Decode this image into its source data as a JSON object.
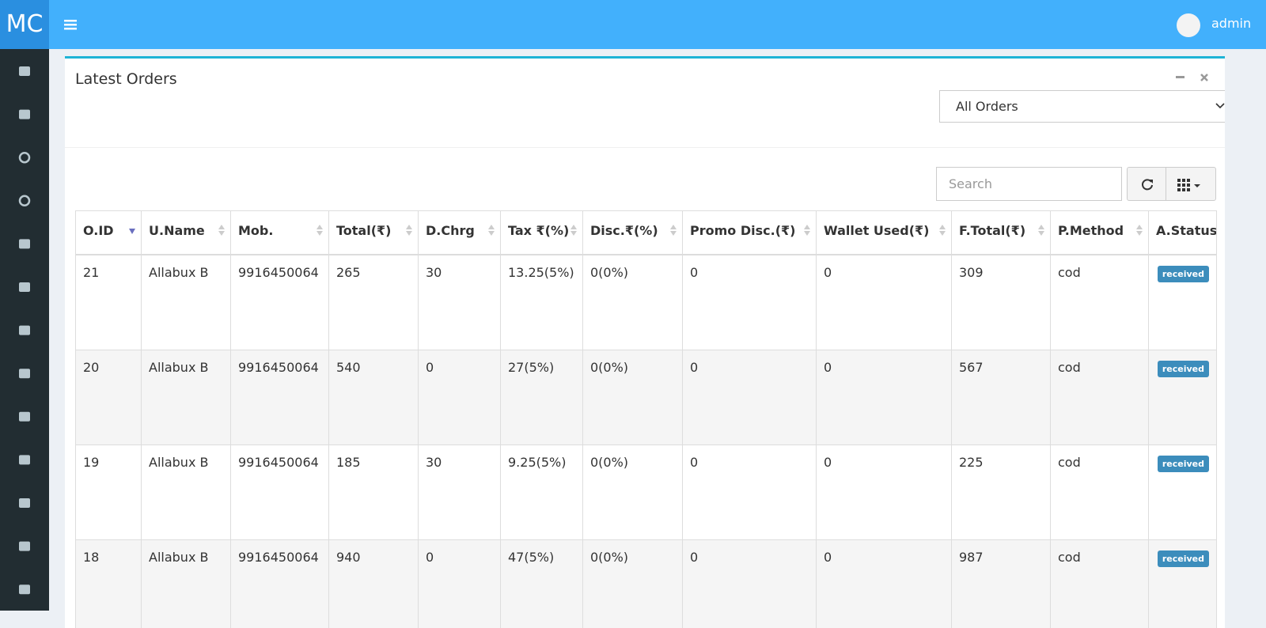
{
  "header": {
    "logo": "MC",
    "user": "admin"
  },
  "panel": {
    "title": "Latest Orders",
    "filter": "All Orders",
    "search": "Search"
  },
  "table": {
    "columns": [
      "O.ID",
      "U.Name",
      "Mob.",
      "Total(₹)",
      "D.Chrg",
      "Tax ₹(%)",
      "Disc.₹(%)",
      "Promo Disc.(₹)",
      "Wallet Used(₹)",
      "F.Total(₹)",
      "P.Method",
      "A.Status"
    ],
    "rows": [
      [
        "21",
        "Allabux B",
        "9916450064",
        "265",
        "30",
        "13.25(5%)",
        "0(0%)",
        "0",
        "0",
        "309",
        "cod",
        "received"
      ],
      [
        "20",
        "Allabux B",
        "9916450064",
        "540",
        "0",
        "27(5%)",
        "0(0%)",
        "0",
        "0",
        "567",
        "cod",
        "received"
      ],
      [
        "19",
        "Allabux B",
        "9916450064",
        "185",
        "30",
        "9.25(5%)",
        "0(0%)",
        "0",
        "0",
        "225",
        "cod",
        "received"
      ],
      [
        "18",
        "Allabux B",
        "9916450064",
        "940",
        "0",
        "47(5%)",
        "0(0%)",
        "0",
        "0",
        "987",
        "cod",
        "received"
      ]
    ]
  }
}
